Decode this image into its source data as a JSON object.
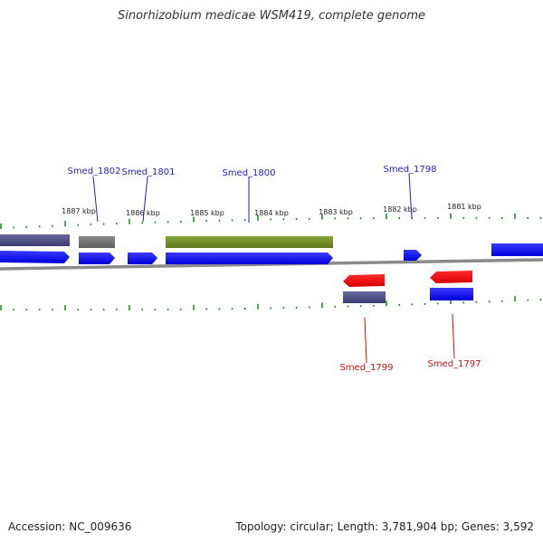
{
  "title": "Sinorhizobium medicae WSM419, complete genome",
  "accession_label": "Accession: NC_009636",
  "summary": "Topology: circular; Length: 3,781,904 bp; Genes: 3,592",
  "scale": {
    "ticks_kbp": [
      1887,
      1886,
      1885,
      1884,
      1883,
      1882,
      1881
    ],
    "tick_labels": [
      "1887 kbp",
      "1886 kbp",
      "1885 kbp",
      "1884 kbp",
      "1883 kbp",
      "1882 kbp",
      "1881 kbp"
    ]
  },
  "genes": [
    {
      "label": "Smed_1802",
      "strand": "forward",
      "color": "#1f1fbf"
    },
    {
      "label": "Smed_1801",
      "strand": "forward",
      "color": "#1f1fbf"
    },
    {
      "label": "Smed_1800",
      "strand": "forward",
      "color": "#1f1fbf"
    },
    {
      "label": "Smed_1798",
      "strand": "forward",
      "color": "#1f1fbf"
    },
    {
      "label": "Smed_1799",
      "strand": "reverse",
      "color": "#cc1111"
    },
    {
      "label": "Smed_1797",
      "strand": "reverse",
      "color": "#cc1111"
    }
  ],
  "colors": {
    "backbone": "#888888",
    "cds_forward": "#0b0bff",
    "cds_reverse": "#ff0000",
    "gene_track": "#555588",
    "gene_track_grey": "#777777",
    "highlight_feature": "#6e8c23",
    "tick": "#2a8a2a"
  }
}
